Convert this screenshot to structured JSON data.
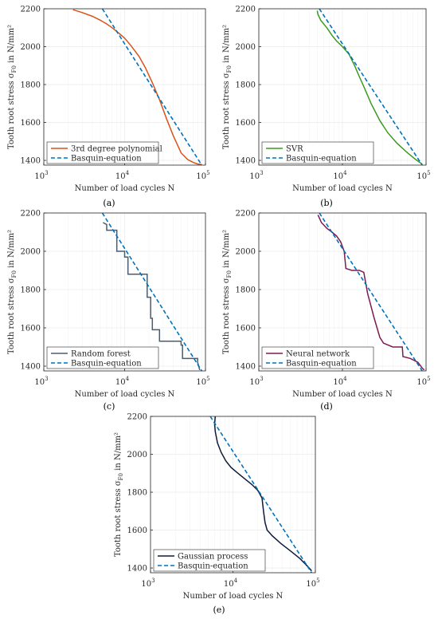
{
  "common": {
    "ylabel": "Tooth root stress σ",
    "ylabel_sub": "F0",
    "ylabel_tail": " in N/mm²",
    "xlabel": "Number of load cycles N",
    "x_ticks": [
      1000,
      10000,
      100000
    ],
    "x_tick_labels": [
      "10",
      "10",
      "10"
    ],
    "x_tick_exps": [
      "3",
      "4",
      "5"
    ],
    "y_ticks": [
      1400,
      1600,
      1800,
      2000,
      2200
    ],
    "y_tick_labels": [
      "1400",
      "1600",
      "1800",
      "2000",
      "2200"
    ],
    "xscale": "log",
    "xlim": [
      1000,
      100000
    ],
    "ylim": [
      1375,
      2200
    ],
    "grid": true,
    "legend_position": "bottom-left",
    "colors": {
      "basquin": "#0072BD",
      "polynomial": "#D95319",
      "svr": "#3A9A1F",
      "random_forest": "#4A5C6E",
      "neural_network": "#7E1A50",
      "gaussian": "#0E1A3A"
    }
  },
  "chart_data": [
    {
      "type": "line",
      "caption": "(a)",
      "series": [
        {
          "name": "3rd degree polynomial",
          "color": "#D95319",
          "dash": false,
          "x": [
            2300,
            3000,
            4000,
            5000,
            6000,
            7000,
            8000,
            10000,
            12000,
            15000,
            18000,
            22000,
            27000,
            33000,
            40000,
            50000,
            60000,
            70000,
            80000,
            90000
          ],
          "y": [
            2195,
            2180,
            2160,
            2140,
            2120,
            2100,
            2080,
            2045,
            2005,
            1950,
            1890,
            1810,
            1720,
            1620,
            1530,
            1440,
            1405,
            1390,
            1381,
            1378
          ]
        },
        {
          "name": "Basquin-equation",
          "color": "#0072BD",
          "dash": true,
          "x": [
            5300,
            90000
          ],
          "y": [
            2200,
            1375
          ]
        }
      ]
    },
    {
      "type": "line",
      "caption": "(b)",
      "series": [
        {
          "name": "SVR",
          "color": "#3A9A1F",
          "dash": false,
          "x": [
            5000,
            5100,
            5500,
            6500,
            7500,
            8500,
            10000,
            12000,
            14000,
            16000,
            18000,
            22000,
            28000,
            35000,
            45000,
            60000,
            75000,
            90000
          ],
          "y": [
            2190,
            2170,
            2140,
            2100,
            2060,
            2030,
            2000,
            1960,
            1900,
            1840,
            1790,
            1700,
            1610,
            1545,
            1490,
            1440,
            1405,
            1380
          ]
        },
        {
          "name": "Basquin-equation",
          "color": "#0072BD",
          "dash": true,
          "x": [
            5300,
            90000
          ],
          "y": [
            2200,
            1375
          ]
        }
      ]
    },
    {
      "type": "line",
      "caption": "(c)",
      "series": [
        {
          "name": "Random forest",
          "color": "#4A5C6E",
          "dash": false,
          "x": [
            5400,
            6000,
            6000,
            8000,
            8000,
            10000,
            10000,
            11000,
            11000,
            19000,
            19000,
            21000,
            21000,
            22000,
            22000,
            27000,
            27000,
            50000,
            50000,
            52000,
            52000,
            80000,
            80000,
            85000
          ],
          "y": [
            2150,
            2140,
            2110,
            2110,
            2000,
            2000,
            1970,
            1970,
            1880,
            1880,
            1760,
            1760,
            1650,
            1650,
            1590,
            1590,
            1530,
            1530,
            1510,
            1510,
            1440,
            1440,
            1420,
            1380
          ]
        },
        {
          "name": "Basquin-equation",
          "color": "#0072BD",
          "dash": true,
          "x": [
            5300,
            90000
          ],
          "y": [
            2200,
            1375
          ]
        }
      ]
    },
    {
      "type": "line",
      "caption": "(d)",
      "series": [
        {
          "name": "Neural network",
          "color": "#7E1A50",
          "dash": false,
          "x": [
            5100,
            5600,
            6500,
            7500,
            8500,
            9500,
            10500,
            11000,
            13000,
            16000,
            18000,
            20000,
            24000,
            28000,
            31000,
            40000,
            52000,
            53000,
            65000,
            80000,
            90000,
            95000
          ],
          "y": [
            2190,
            2150,
            2120,
            2100,
            2080,
            2050,
            2000,
            1910,
            1900,
            1900,
            1890,
            1780,
            1650,
            1550,
            1520,
            1500,
            1500,
            1450,
            1440,
            1420,
            1390,
            1380
          ]
        },
        {
          "name": "Basquin-equation",
          "color": "#0072BD",
          "dash": true,
          "x": [
            5300,
            90000
          ],
          "y": [
            2200,
            1375
          ]
        }
      ]
    },
    {
      "type": "line",
      "caption": "(e)",
      "series": [
        {
          "name": "Gaussian process",
          "color": "#0E1A3A",
          "dash": false,
          "x": [
            6100,
            6000,
            6100,
            6500,
            7200,
            8200,
            9500,
            11500,
            14000,
            17000,
            20000,
            22500,
            23500,
            24500,
            26000,
            30000,
            38000,
            50000,
            65000,
            80000,
            90000
          ],
          "y": [
            2200,
            2160,
            2120,
            2060,
            2010,
            1965,
            1930,
            1900,
            1870,
            1840,
            1810,
            1770,
            1700,
            1640,
            1600,
            1570,
            1530,
            1490,
            1450,
            1410,
            1385
          ]
        },
        {
          "name": "Basquin-equation",
          "color": "#0072BD",
          "dash": true,
          "x": [
            5300,
            90000
          ],
          "y": [
            2200,
            1375
          ]
        }
      ]
    }
  ]
}
